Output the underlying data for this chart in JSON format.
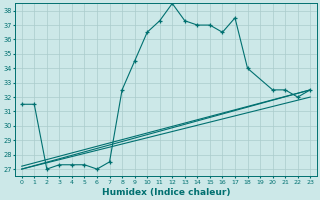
{
  "xlabel": "Humidex (Indice chaleur)",
  "ylabel": "",
  "background_color": "#cce8e8",
  "grid_color": "#aacccc",
  "line_color": "#007070",
  "xlim": [
    -0.5,
    23.5
  ],
  "ylim": [
    26.5,
    38.5
  ],
  "xticks": [
    0,
    1,
    2,
    3,
    4,
    5,
    6,
    7,
    8,
    9,
    10,
    11,
    12,
    13,
    14,
    15,
    16,
    17,
    18,
    19,
    20,
    21,
    22,
    23
  ],
  "yticks": [
    27,
    28,
    29,
    30,
    31,
    32,
    33,
    34,
    35,
    36,
    37,
    38
  ],
  "main_curve": {
    "x": [
      0,
      1,
      2,
      3,
      4,
      5,
      6,
      7,
      8,
      9,
      10,
      11,
      12,
      13,
      14,
      15,
      16,
      17,
      18,
      20,
      21,
      22,
      23
    ],
    "y": [
      31.5,
      31.5,
      27.0,
      27.3,
      27.3,
      27.3,
      27.0,
      27.5,
      32.5,
      34.5,
      36.5,
      37.3,
      38.5,
      37.3,
      37.0,
      37.0,
      36.5,
      37.5,
      34.0,
      32.5,
      32.5,
      32.0,
      32.5
    ]
  },
  "linear_lines": [
    {
      "x": [
        0,
        23
      ],
      "y": [
        27.0,
        32.5
      ]
    },
    {
      "x": [
        0,
        23
      ],
      "y": [
        27.0,
        32.0
      ]
    },
    {
      "x": [
        0,
        23
      ],
      "y": [
        27.2,
        32.5
      ]
    }
  ]
}
